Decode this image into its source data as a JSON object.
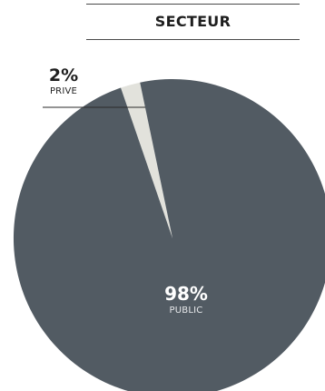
{
  "chart_data": {
    "type": "pie",
    "title": "SECTEUR",
    "slices": [
      {
        "label": "PRIVE",
        "value": 2,
        "display": "2%",
        "color": "#e2e2dc"
      },
      {
        "label": "PUBLIC",
        "value": 98,
        "display": "98%",
        "color": "#525b63"
      }
    ]
  }
}
